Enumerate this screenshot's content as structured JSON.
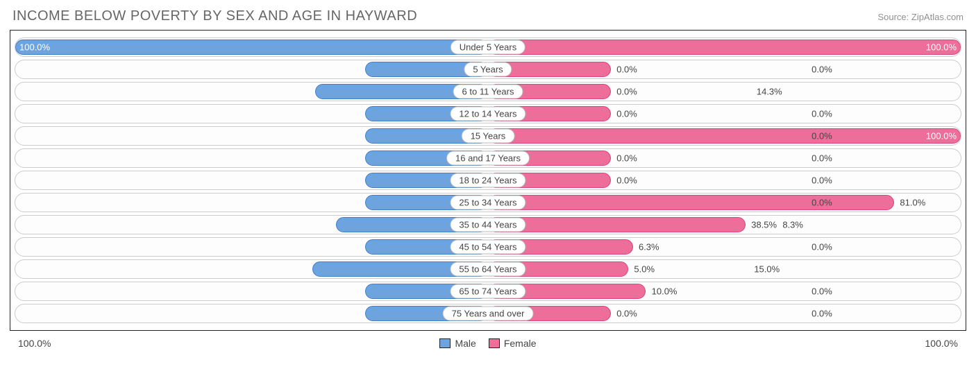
{
  "title": "INCOME BELOW POVERTY BY SEX AND AGE IN HAYWARD",
  "source": "Source: ZipAtlas.com",
  "chart": {
    "type": "diverging-bar",
    "male_color": "#6da4e0",
    "male_border": "#3f7dc9",
    "female_color": "#ed6e99",
    "female_border": "#d9447e",
    "track_border": "#cccccc",
    "background": "#ffffff",
    "min_bar_pct": 13,
    "axis_left": "100.0%",
    "axis_right": "100.0%",
    "legend": {
      "male": "Male",
      "female": "Female"
    },
    "rows": [
      {
        "label": "Under 5 Years",
        "male": 100.0,
        "female": 100.0
      },
      {
        "label": "5 Years",
        "male": 0.0,
        "female": 0.0
      },
      {
        "label": "6 to 11 Years",
        "male": 14.3,
        "female": 0.0
      },
      {
        "label": "12 to 14 Years",
        "male": 0.0,
        "female": 0.0
      },
      {
        "label": "15 Years",
        "male": 0.0,
        "female": 100.0
      },
      {
        "label": "16 and 17 Years",
        "male": 0.0,
        "female": 0.0
      },
      {
        "label": "18 to 24 Years",
        "male": 0.0,
        "female": 0.0
      },
      {
        "label": "25 to 34 Years",
        "male": 0.0,
        "female": 81.0
      },
      {
        "label": "35 to 44 Years",
        "male": 8.3,
        "female": 38.5
      },
      {
        "label": "45 to 54 Years",
        "male": 0.0,
        "female": 6.3
      },
      {
        "label": "55 to 64 Years",
        "male": 15.0,
        "female": 5.0
      },
      {
        "label": "65 to 74 Years",
        "male": 0.0,
        "female": 10.0
      },
      {
        "label": "75 Years and over",
        "male": 0.0,
        "female": 0.0
      }
    ]
  }
}
